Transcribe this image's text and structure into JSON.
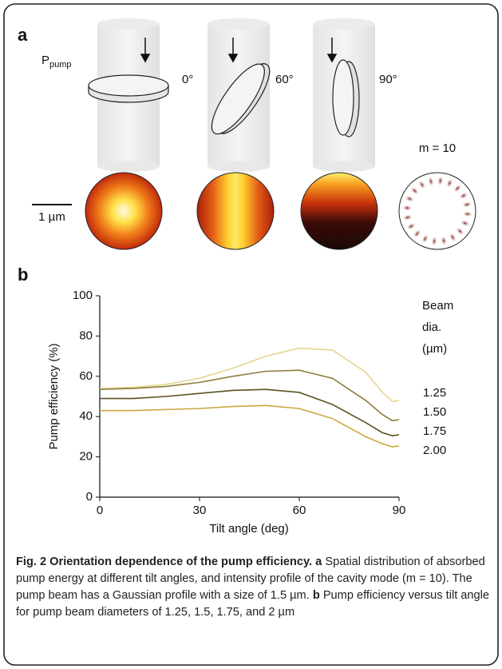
{
  "panel_a": {
    "label": "a",
    "pump_label": "P",
    "pump_sub": "pump",
    "angles": [
      "0°",
      "60°",
      "90°"
    ],
    "mode_label": "m = 10",
    "scale_bar": "1 µm"
  },
  "panel_b": {
    "label": "b"
  },
  "chart_data": {
    "type": "line",
    "xlabel": "Tilt angle (deg)",
    "ylabel": "Pump efficiency (%)",
    "x": [
      0,
      10,
      20,
      30,
      40,
      50,
      60,
      70,
      80,
      85,
      88,
      90
    ],
    "series": [
      {
        "name": "1.25",
        "color": "#e6d48e",
        "values": [
          54,
          54.5,
          56,
          59,
          64,
          70,
          74,
          73,
          62,
          52,
          47.5,
          48
        ]
      },
      {
        "name": "1.50",
        "color": "#8f7d3c",
        "values": [
          53.5,
          54,
          55,
          57,
          60,
          62.5,
          63,
          59,
          48,
          41,
          38,
          38.5
        ]
      },
      {
        "name": "1.75",
        "color": "#5c5222",
        "values": [
          49,
          49,
          50,
          51.5,
          53,
          53.5,
          52,
          46,
          37,
          32,
          30.5,
          31
        ]
      },
      {
        "name": "2.00",
        "color": "#c9a83f",
        "values": [
          43,
          43,
          43.5,
          44,
          45,
          45.5,
          44,
          39,
          30,
          26.5,
          25,
          25.5
        ]
      }
    ],
    "legend_title": [
      "Beam",
      "dia.",
      "(µm)"
    ],
    "xlim": [
      0,
      90
    ],
    "xticks": [
      0,
      30,
      60,
      90
    ],
    "ylim": [
      0,
      100
    ],
    "yticks": [
      0,
      20,
      40,
      60,
      80,
      100
    ]
  },
  "caption": {
    "title": "Fig. 2 Orientation dependence of the pump efficiency.",
    "a_label": "a",
    "a_text": "Spatial distribution of absorbed pump energy at different tilt angles, and intensity profile of the cavity mode (m = 10). The pump beam has a Gaussian profile with a size of 1.5 µm.",
    "b_label": "b",
    "b_text": "Pump efficiency versus tilt angle for pump beam diameters of 1.25, 1.5, 1.75, and 2 µm"
  }
}
